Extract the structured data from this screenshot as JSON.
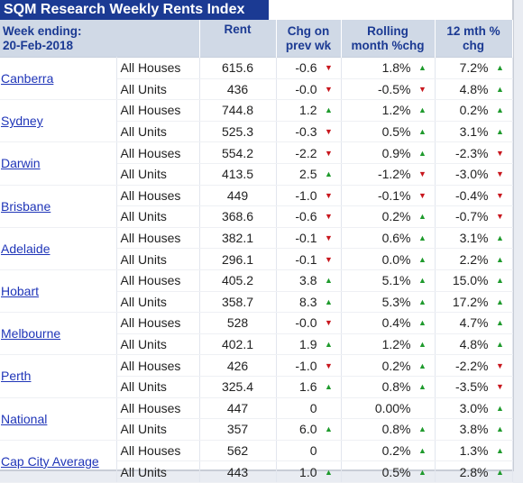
{
  "title": "SQM Research Weekly Rents Index",
  "header": {
    "week_ending_line1": "Week ending:",
    "week_ending_line2": "20-Feb-2018",
    "rent": "Rent",
    "chg_line1": "Chg on",
    "chg_line2": "prev wk",
    "rolling_line1": "Rolling",
    "rolling_line2": "month %chg",
    "yr_line1": "12 mth %",
    "yr_line2": "chg"
  },
  "colors": {
    "up": "#1e9a2c",
    "down": "#c8161d",
    "title_bg": "#1b3a93",
    "header_bg": "#d0d9e6",
    "link": "#1f35b8"
  },
  "cities": [
    {
      "name": "Canberra",
      "rows": [
        {
          "type": "All Houses",
          "rent": "615.6",
          "chg": "-0.6",
          "chg_dir": "down",
          "roll": "1.8%",
          "roll_dir": "up",
          "yr": "7.2%",
          "yr_dir": "up"
        },
        {
          "type": "All Units",
          "rent": "436",
          "chg": "-0.0",
          "chg_dir": "down",
          "roll": "-0.5%",
          "roll_dir": "down",
          "yr": "4.8%",
          "yr_dir": "up"
        }
      ]
    },
    {
      "name": "Sydney",
      "rows": [
        {
          "type": "All Houses",
          "rent": "744.8",
          "chg": "1.2",
          "chg_dir": "up",
          "roll": "1.2%",
          "roll_dir": "up",
          "yr": "0.2%",
          "yr_dir": "up"
        },
        {
          "type": "All Units",
          "rent": "525.3",
          "chg": "-0.3",
          "chg_dir": "down",
          "roll": "0.5%",
          "roll_dir": "up",
          "yr": "3.1%",
          "yr_dir": "up"
        }
      ]
    },
    {
      "name": "Darwin",
      "rows": [
        {
          "type": "All Houses",
          "rent": "554.2",
          "chg": "-2.2",
          "chg_dir": "down",
          "roll": "0.9%",
          "roll_dir": "up",
          "yr": "-2.3%",
          "yr_dir": "down"
        },
        {
          "type": "All Units",
          "rent": "413.5",
          "chg": "2.5",
          "chg_dir": "up",
          "roll": "-1.2%",
          "roll_dir": "down",
          "yr": "-3.0%",
          "yr_dir": "down"
        }
      ]
    },
    {
      "name": "Brisbane",
      "rows": [
        {
          "type": "All Houses",
          "rent": "449",
          "chg": "-1.0",
          "chg_dir": "down",
          "roll": "-0.1%",
          "roll_dir": "down",
          "yr": "-0.4%",
          "yr_dir": "down"
        },
        {
          "type": "All Units",
          "rent": "368.6",
          "chg": "-0.6",
          "chg_dir": "down",
          "roll": "0.2%",
          "roll_dir": "up",
          "yr": "-0.7%",
          "yr_dir": "down"
        }
      ]
    },
    {
      "name": "Adelaide",
      "rows": [
        {
          "type": "All Houses",
          "rent": "382.1",
          "chg": "-0.1",
          "chg_dir": "down",
          "roll": "0.6%",
          "roll_dir": "up",
          "yr": "3.1%",
          "yr_dir": "up"
        },
        {
          "type": "All Units",
          "rent": "296.1",
          "chg": "-0.1",
          "chg_dir": "down",
          "roll": "0.0%",
          "roll_dir": "up",
          "yr": "2.2%",
          "yr_dir": "up"
        }
      ]
    },
    {
      "name": "Hobart",
      "rows": [
        {
          "type": "All Houses",
          "rent": "405.2",
          "chg": "3.8",
          "chg_dir": "up",
          "roll": "5.1%",
          "roll_dir": "up",
          "yr": "15.0%",
          "yr_dir": "up"
        },
        {
          "type": "All Units",
          "rent": "358.7",
          "chg": "8.3",
          "chg_dir": "up",
          "roll": "5.3%",
          "roll_dir": "up",
          "yr": "17.2%",
          "yr_dir": "up"
        }
      ]
    },
    {
      "name": "Melbourne",
      "rows": [
        {
          "type": "All Houses",
          "rent": "528",
          "chg": "-0.0",
          "chg_dir": "down",
          "roll": "0.4%",
          "roll_dir": "up",
          "yr": "4.7%",
          "yr_dir": "up"
        },
        {
          "type": "All Units",
          "rent": "402.1",
          "chg": "1.9",
          "chg_dir": "up",
          "roll": "1.2%",
          "roll_dir": "up",
          "yr": "4.8%",
          "yr_dir": "up"
        }
      ]
    },
    {
      "name": "Perth",
      "rows": [
        {
          "type": "All Houses",
          "rent": "426",
          "chg": "-1.0",
          "chg_dir": "down",
          "roll": "0.2%",
          "roll_dir": "up",
          "yr": "-2.2%",
          "yr_dir": "down"
        },
        {
          "type": "All Units",
          "rent": "325.4",
          "chg": "1.6",
          "chg_dir": "up",
          "roll": "0.8%",
          "roll_dir": "up",
          "yr": "-3.5%",
          "yr_dir": "down"
        }
      ]
    },
    {
      "name": "National",
      "rows": [
        {
          "type": "All Houses",
          "rent": "447",
          "chg": "0",
          "chg_dir": "",
          "roll": "0.00%",
          "roll_dir": "",
          "yr": "3.0%",
          "yr_dir": "up"
        },
        {
          "type": "All Units",
          "rent": "357",
          "chg": "6.0",
          "chg_dir": "up",
          "roll": "0.8%",
          "roll_dir": "up",
          "yr": "3.8%",
          "yr_dir": "up"
        }
      ]
    },
    {
      "name": "Cap City Average",
      "rows": [
        {
          "type": "All Houses",
          "rent": "562",
          "chg": "0",
          "chg_dir": "",
          "roll": "0.2%",
          "roll_dir": "up",
          "yr": "1.3%",
          "yr_dir": "up"
        },
        {
          "type": "All Units",
          "rent": "443",
          "chg": "1.0",
          "chg_dir": "up",
          "roll": "0.5%",
          "roll_dir": "up",
          "yr": "2.8%",
          "yr_dir": "up"
        }
      ]
    }
  ]
}
